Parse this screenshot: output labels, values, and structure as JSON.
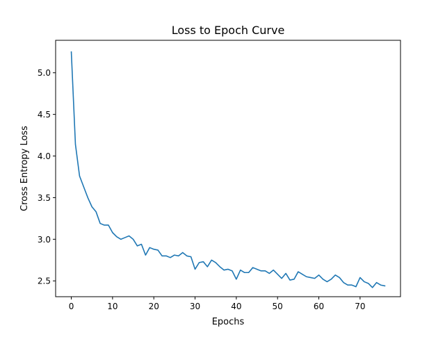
{
  "chart_data": {
    "type": "line",
    "title": "Loss to Epoch Curve",
    "xlabel": "Epochs",
    "ylabel": "Cross Entropy Loss",
    "xlim": [
      -3.8,
      79.8
    ],
    "ylim": [
      2.31,
      5.39
    ],
    "x_ticks": [
      0,
      10,
      20,
      30,
      40,
      50,
      60,
      70
    ],
    "x_tick_labels": [
      "0",
      "10",
      "20",
      "30",
      "40",
      "50",
      "60",
      "70"
    ],
    "y_ticks": [
      2.5,
      3.0,
      3.5,
      4.0,
      4.5,
      5.0
    ],
    "y_tick_labels": [
      "2.5",
      "3.0",
      "3.5",
      "4.0",
      "4.5",
      "5.0"
    ],
    "grid": false,
    "series": [
      {
        "color": "#1f77b4",
        "x": [
          0,
          1,
          2,
          3,
          4,
          5,
          6,
          7,
          8,
          9,
          10,
          11,
          12,
          13,
          14,
          15,
          16,
          17,
          18,
          19,
          20,
          21,
          22,
          23,
          24,
          25,
          26,
          27,
          28,
          29,
          30,
          31,
          32,
          33,
          34,
          35,
          36,
          37,
          38,
          39,
          40,
          41,
          42,
          43,
          44,
          45,
          46,
          47,
          48,
          49,
          50,
          51,
          52,
          53,
          54,
          55,
          56,
          57,
          58,
          59,
          60,
          61,
          62,
          63,
          64,
          65,
          66,
          67,
          68,
          69,
          70,
          71,
          72,
          73,
          74,
          75,
          76
        ],
        "values": [
          5.25,
          4.14,
          3.76,
          3.63,
          3.5,
          3.39,
          3.33,
          3.19,
          3.17,
          3.17,
          3.08,
          3.03,
          3.0,
          3.02,
          3.04,
          3.0,
          2.92,
          2.94,
          2.81,
          2.9,
          2.88,
          2.87,
          2.8,
          2.8,
          2.78,
          2.81,
          2.8,
          2.84,
          2.8,
          2.79,
          2.64,
          2.72,
          2.73,
          2.67,
          2.75,
          2.72,
          2.67,
          2.63,
          2.64,
          2.62,
          2.52,
          2.63,
          2.6,
          2.6,
          2.66,
          2.64,
          2.62,
          2.62,
          2.59,
          2.63,
          2.58,
          2.53,
          2.59,
          2.51,
          2.52,
          2.61,
          2.58,
          2.55,
          2.54,
          2.53,
          2.57,
          2.52,
          2.49,
          2.52,
          2.57,
          2.54,
          2.48,
          2.45,
          2.45,
          2.43,
          2.54,
          2.49,
          2.47,
          2.42,
          2.48,
          2.45,
          2.44
        ]
      }
    ]
  }
}
